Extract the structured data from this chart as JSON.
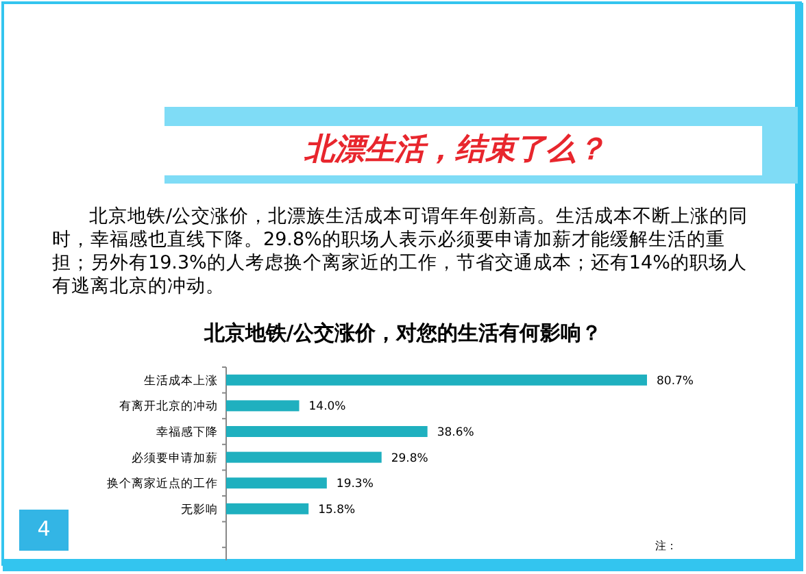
{
  "chart_data": {
    "type": "bar",
    "orientation": "horizontal",
    "title": "北京地铁/公交涨价，对您的生活有何影响？",
    "categories": [
      "生活成本上涨",
      "有离开北京的冲动",
      "幸福感下降",
      "必须要申请加薪",
      "换个离家近点的工作",
      "无影响"
    ],
    "values": [
      80.7,
      14.0,
      38.6,
      29.8,
      19.3,
      15.8
    ],
    "value_labels": [
      "80.7%",
      "14.0%",
      "38.6%",
      "29.8%",
      "19.3%",
      "15.8%"
    ],
    "color": "#1fb0bf",
    "annotations": [
      "北漂生活，结束了么？",
      "北京地铁/公交涨价，北漂族生活成本可谓年年创新高。生活成本不断上涨的同时，幸福感也直线下降。29.8%的职场人表示必须要申请加薪才能缓解生活的重担；另外有19.3%的人考虑换个离家近的工作，节省交通成本；还有14%的职场人有逃离北京的冲动。",
      "4",
      "注："
    ]
  }
}
